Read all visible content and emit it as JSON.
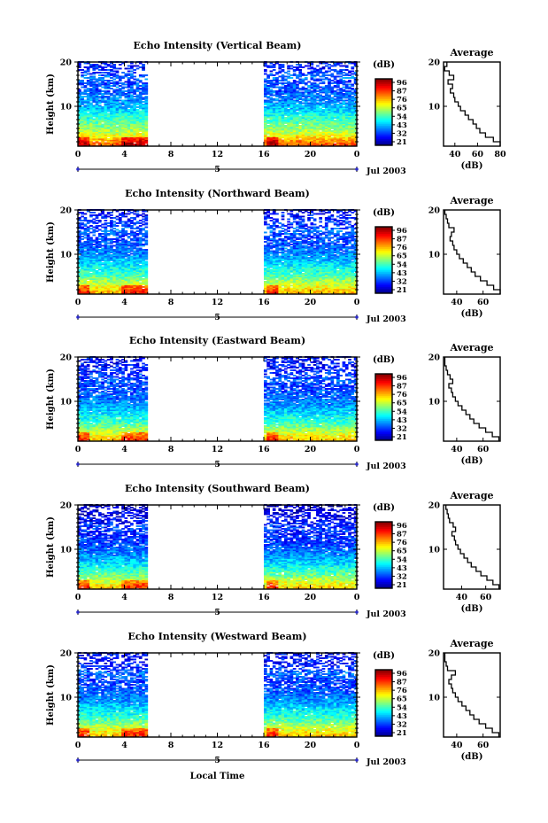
{
  "figure": {
    "xlabel": "Local Time",
    "ylabel": "Height (km)",
    "date_label": "Jul 2003",
    "day_label": "5",
    "colorbar_unit": "(dB)",
    "colorbar_ticks": [
      "96",
      "87",
      "76",
      "65",
      "54",
      "43",
      "32",
      "21"
    ],
    "avg_title": "Average",
    "avg_xlabel": "(dB)"
  },
  "chart_data": [
    {
      "type": "heatmap",
      "title": "Echo Intensity (Vertical Beam)",
      "xlabel": "Local Time",
      "ylabel": "Height (km)",
      "x_ticks": [
        "0",
        "4",
        "8",
        "12",
        "16",
        "20",
        "0"
      ],
      "xlim": [
        0,
        24
      ],
      "y_ticks": [
        "10",
        "20"
      ],
      "ylim": [
        1,
        20
      ],
      "data_intervals_hours": [
        [
          0,
          6
        ],
        [
          16,
          24
        ]
      ],
      "colorbar": {
        "unit": "(dB)",
        "min": 21,
        "max": 96
      },
      "average_profile": {
        "title": "Average",
        "xlabel": "(dB)",
        "x_ticks": [
          "40",
          "60",
          "80"
        ],
        "xlim": [
          30,
          80
        ],
        "y_ticks": [
          "10",
          "20"
        ],
        "ylim": [
          1,
          20
        ],
        "height_km": [
          1.5,
          2.5,
          3.5,
          4.5,
          5.5,
          6.5,
          7.5,
          8.5,
          9.5,
          10.5,
          11.5,
          12.5,
          13.5,
          14.5,
          15.5,
          16.5,
          17.5,
          18.5,
          19.5
        ],
        "db": [
          80,
          74,
          67,
          62,
          59,
          56,
          52,
          49,
          45,
          43,
          40,
          39,
          36,
          38,
          34,
          39,
          35,
          31,
          33
        ]
      }
    },
    {
      "type": "heatmap",
      "title": "Echo Intensity (Northward Beam)",
      "xlabel": "Local Time",
      "ylabel": "Height (km)",
      "x_ticks": [
        "0",
        "4",
        "8",
        "12",
        "16",
        "20",
        "0"
      ],
      "xlim": [
        0,
        24
      ],
      "y_ticks": [
        "10",
        "20"
      ],
      "ylim": [
        1,
        20
      ],
      "data_intervals_hours": [
        [
          0,
          6
        ],
        [
          16,
          24
        ]
      ],
      "colorbar": {
        "unit": "(dB)",
        "min": 21,
        "max": 96
      },
      "average_profile": {
        "title": "Average",
        "xlabel": "(dB)",
        "x_ticks": [
          "40",
          "60"
        ],
        "xlim": [
          30,
          73
        ],
        "y_ticks": [
          "10",
          "20"
        ],
        "ylim": [
          1,
          20
        ],
        "height_km": [
          1.5,
          2.5,
          3.5,
          4.5,
          5.5,
          6.5,
          7.5,
          8.5,
          9.5,
          10.5,
          11.5,
          12.5,
          13.5,
          14.5,
          15.5,
          16.5,
          17.5,
          18.5,
          19.5
        ],
        "db": [
          73,
          68,
          63,
          58,
          54,
          51,
          48,
          45,
          42,
          40,
          38,
          37,
          35,
          36,
          38,
          34,
          33,
          32,
          31
        ]
      }
    },
    {
      "type": "heatmap",
      "title": "Echo Intensity (Eastward Beam)",
      "xlabel": "Local Time",
      "ylabel": "Height (km)",
      "x_ticks": [
        "0",
        "4",
        "8",
        "12",
        "16",
        "20",
        "0"
      ],
      "xlim": [
        0,
        24
      ],
      "y_ticks": [
        "10",
        "20"
      ],
      "ylim": [
        1,
        20
      ],
      "data_intervals_hours": [
        [
          0,
          6
        ],
        [
          16,
          24
        ]
      ],
      "colorbar": {
        "unit": "(dB)",
        "min": 21,
        "max": 96
      },
      "average_profile": {
        "title": "Average",
        "xlabel": "(dB)",
        "x_ticks": [
          "40",
          "60"
        ],
        "xlim": [
          30,
          73
        ],
        "y_ticks": [
          "10",
          "20"
        ],
        "ylim": [
          1,
          20
        ],
        "height_km": [
          1.5,
          2.5,
          3.5,
          4.5,
          5.5,
          6.5,
          7.5,
          8.5,
          9.5,
          10.5,
          11.5,
          12.5,
          13.5,
          14.5,
          15.5,
          16.5,
          17.5,
          18.5,
          19.5
        ],
        "db": [
          72,
          67,
          62,
          57,
          53,
          50,
          47,
          44,
          41,
          39,
          37,
          36,
          34,
          37,
          35,
          33,
          32,
          31,
          31
        ]
      }
    },
    {
      "type": "heatmap",
      "title": "Echo Intensity (Southward Beam)",
      "xlabel": "Local Time",
      "ylabel": "Height (km)",
      "x_ticks": [
        "0",
        "4",
        "8",
        "12",
        "16",
        "20",
        "0"
      ],
      "xlim": [
        0,
        24
      ],
      "y_ticks": [
        "10",
        "20"
      ],
      "ylim": [
        1,
        20
      ],
      "data_intervals_hours": [
        [
          0,
          6
        ],
        [
          16,
          24
        ]
      ],
      "colorbar": {
        "unit": "(dB)",
        "min": 21,
        "max": 96
      },
      "average_profile": {
        "title": "Average",
        "xlabel": "(dB)",
        "x_ticks": [
          "40",
          "60"
        ],
        "xlim": [
          25,
          72
        ],
        "y_ticks": [
          "10",
          "20"
        ],
        "ylim": [
          1,
          20
        ],
        "height_km": [
          1.5,
          2.5,
          3.5,
          4.5,
          5.5,
          6.5,
          7.5,
          8.5,
          9.5,
          10.5,
          11.5,
          12.5,
          13.5,
          14.5,
          15.5,
          16.5,
          17.5,
          18.5,
          19.5
        ],
        "db": [
          71,
          66,
          61,
          56,
          52,
          48,
          45,
          42,
          39,
          37,
          35,
          34,
          32,
          35,
          33,
          30,
          29,
          28,
          27
        ]
      }
    },
    {
      "type": "heatmap",
      "title": "Echo Intensity (Westward Beam)",
      "xlabel": "Local Time",
      "ylabel": "Height (km)",
      "x_ticks": [
        "0",
        "4",
        "8",
        "12",
        "16",
        "20",
        "0"
      ],
      "xlim": [
        0,
        24
      ],
      "y_ticks": [
        "10",
        "20"
      ],
      "ylim": [
        1,
        20
      ],
      "data_intervals_hours": [
        [
          0,
          6
        ],
        [
          16,
          24
        ]
      ],
      "colorbar": {
        "unit": "(dB)",
        "min": 21,
        "max": 96
      },
      "average_profile": {
        "title": "Average",
        "xlabel": "(dB)",
        "x_ticks": [
          "40",
          "60"
        ],
        "xlim": [
          30,
          73
        ],
        "y_ticks": [
          "10",
          "20"
        ],
        "ylim": [
          1,
          20
        ],
        "height_km": [
          1.5,
          2.5,
          3.5,
          4.5,
          5.5,
          6.5,
          7.5,
          8.5,
          9.5,
          10.5,
          11.5,
          12.5,
          13.5,
          14.5,
          15.5,
          16.5,
          17.5,
          18.5,
          19.5
        ],
        "db": [
          72,
          67,
          62,
          57,
          53,
          50,
          47,
          44,
          41,
          39,
          37,
          36,
          34,
          36,
          39,
          33,
          32,
          31,
          31
        ]
      }
    }
  ]
}
